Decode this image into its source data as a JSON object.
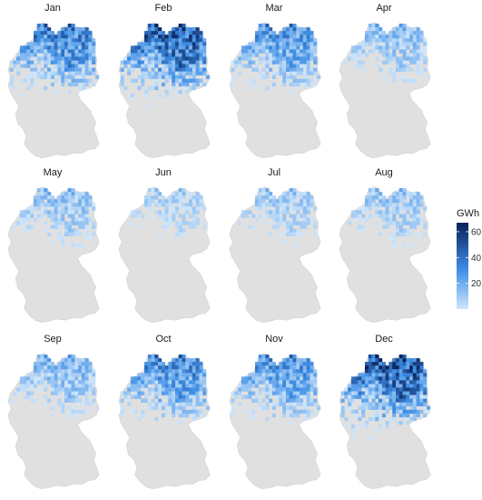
{
  "panels": [
    {
      "month": "Jan",
      "intensity": 0.78
    },
    {
      "month": "Feb",
      "intensity": 0.92
    },
    {
      "month": "Mar",
      "intensity": 0.7
    },
    {
      "month": "Apr",
      "intensity": 0.52
    },
    {
      "month": "May",
      "intensity": 0.5
    },
    {
      "month": "Jun",
      "intensity": 0.42
    },
    {
      "month": "Jul",
      "intensity": 0.46
    },
    {
      "month": "Aug",
      "intensity": 0.48
    },
    {
      "month": "Sep",
      "intensity": 0.55
    },
    {
      "month": "Oct",
      "intensity": 0.74
    },
    {
      "month": "Nov",
      "intensity": 0.7
    },
    {
      "month": "Dec",
      "intensity": 0.95
    }
  ],
  "legend": {
    "title": "GWh",
    "ticks": [
      {
        "label": "20",
        "value": 20
      },
      {
        "label": "40",
        "value": 40
      },
      {
        "label": "60",
        "value": 60
      }
    ],
    "range": [
      0,
      67
    ],
    "colors": {
      "low": "#cfe6fb",
      "mid": "#3f8fe6",
      "high": "#08215a"
    }
  },
  "colors": {
    "base_land": "#e0e0e0",
    "border": "#d4d4d4"
  }
}
